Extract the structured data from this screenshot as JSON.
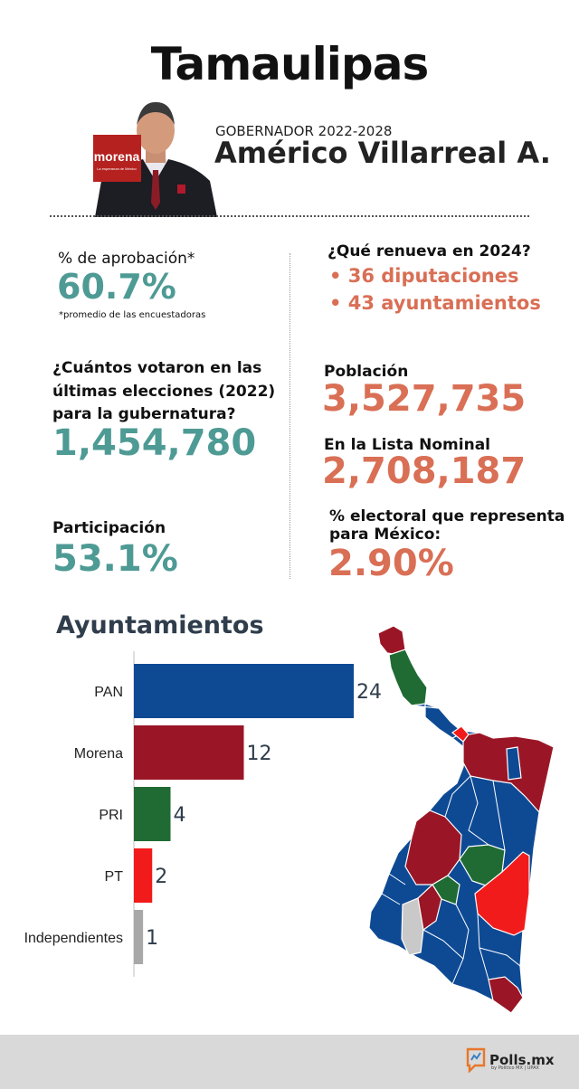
{
  "header": {
    "title": "Tamaulipas",
    "gov_label": "GOBERNADOR 2022-2028",
    "gov_name": "Américo Villarreal A.",
    "party_logo_text": "morena",
    "party_logo_sub": "La esperanza de México"
  },
  "stats": {
    "approval_label": "% de aprobación*",
    "approval_value": "60.7%",
    "approval_note": "*promedio de las encuestadoras",
    "renew_label": "¿Qué renueva en 2024?",
    "renew_items": [
      "• 36 diputaciones",
      "• 43 ayuntamientos"
    ],
    "voters_label_lines": [
      "¿Cuántos votaron en las",
      "últimas elecciones (2022)",
      "para la gubernatura?"
    ],
    "voters_value": "1,454,780",
    "population_label": "Población",
    "population_value": "3,527,735",
    "nominal_label": "En la Lista Nominal",
    "nominal_value": "2,708,187",
    "participation_label": "Participación",
    "participation_value": "53.1%",
    "electoral_label_lines": [
      "% electoral que representa",
      "para México:"
    ],
    "electoral_value": "2.90%"
  },
  "chart_data": {
    "type": "bar",
    "orientation": "horizontal",
    "title": "Ayuntamientos",
    "categories": [
      "PAN",
      "Morena",
      "PRI",
      "PT",
      "Independientes"
    ],
    "values": [
      24,
      12,
      4,
      2,
      1
    ],
    "colors": [
      "#0e4a94",
      "#9a1626",
      "#1f6b33",
      "#f21b1b",
      "#a8a8a8"
    ]
  },
  "map": {
    "legend_colors": {
      "PAN": "#0e4a94",
      "Morena": "#9a1626",
      "PRI": "#1f6b33",
      "PT": "#f21b1b",
      "Independientes": "#c9c9c9"
    }
  },
  "footer": {
    "brand": "Polls.mx",
    "brand_sub": "by Politico MX | UPAX"
  }
}
